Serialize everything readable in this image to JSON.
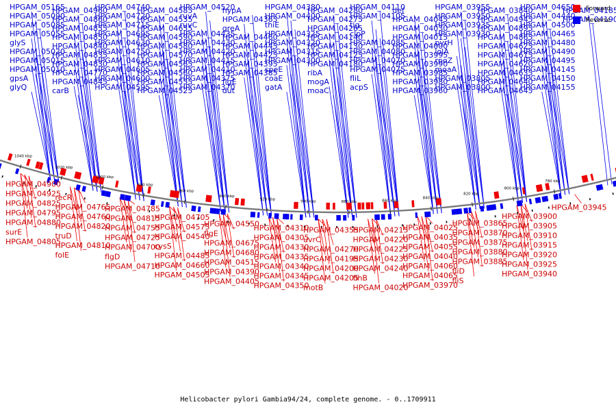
{
  "caption": "Helicobacter pylori Gambia94/24, complete genome. - 0..1709911",
  "legend": [
    {
      "label": "Forward",
      "color": "#ee0000"
    },
    {
      "label": "Reverse",
      "color": "#0000ee"
    }
  ],
  "colors": {
    "forward": "#ee0000",
    "reverse": "#0000ee",
    "backbone": "#7a7a7a"
  },
  "ticks": [
    "1040 kbp",
    "1020 kbp",
    "1000 kbp",
    "980 kbp",
    "960 kbp",
    "940 kbp",
    "920 kbp",
    "900 kbp",
    "880 kbp",
    "860 kbp",
    "840 kbp",
    "820 kbp",
    "800 kbp",
    "780 kbp"
  ],
  "reverse_labels": [
    "HPGAM_05165",
    "HPGAM_05090",
    "HPGAM_05085",
    "HPGAM_05055",
    "glyS",
    "HPGAM_05020",
    "HPGAM_05015",
    "HPGAM_05010",
    "gpsA",
    "glyQ",
    "HPGAM_04960",
    "HPGAM_04860",
    "HPGAM_04855",
    "HPGAM_04850",
    "HPGAM_04840",
    "HPGAM_04835",
    "HPGAM_04830",
    "HPGAM_04770",
    "HPGAM_04845",
    "carB",
    "HPGAM_04740",
    "HPGAM_04720",
    "HPGAM_04715",
    "HPGAM_04695",
    "HPGAM_04630",
    "HPGAM_04750",
    "HPGAM_04610",
    "HPGAM_04605",
    "HPGAM_04600",
    "HPGAM_04595",
    "HPGAM_04585",
    "HPGAM_04535",
    "HPGAM_04655",
    "HPGAM_04590",
    "HPGAM_04580",
    "HPGAM_04570",
    "HPGAM_04565",
    "HPGAM_04560",
    "HPGAM_04555",
    "HPGAM_04525",
    "HPGAM_04520",
    "ruvA",
    "ruvC",
    "HPGAM_04435",
    "HPGAM_04430",
    "HPGAM_04420",
    "HPGAM_04415",
    "HPGAM_04410",
    "HPGAM_04375",
    "HPGAM_04370",
    "hypA",
    "HPGAM_04365",
    "greA",
    "HPGAM_04460",
    "HPGAM_04445",
    "HPGAM_04425",
    "HPGAM_04395",
    "HPGAM_04385",
    "flgE",
    "dut",
    "HPGAM_04380",
    "HPGAM_04400",
    "thiE",
    "HPGAM_04325",
    "HPGAM_04320",
    "HPGAM_04315",
    "HPGAM_04300",
    "speE",
    "coaE",
    "gatA",
    "HPGAM_04280",
    "HPGAM_04275",
    "HPGAM_04265",
    "HPGAM_04140",
    "HPGAM_04130",
    "HPGAM_04125",
    "HPGAM_04180",
    "ribA",
    "mogA",
    "moaC",
    "HPGAM_04110",
    "HPGAM_04105",
    "tig",
    "clpP",
    "HPGAM_04085",
    "HPGAM_04080",
    "HPGAM_04070",
    "HPGAM_04075",
    "fliL",
    "acpS",
    "def",
    "HPGAM_04045",
    "HPGAM_04030",
    "HPGAM_04015",
    "HPGAM_04000",
    "HPGAM_03995",
    "HPGAM_03990",
    "HPGAM_03985",
    "HPGAM_03980",
    "HPGAM_03960",
    "HPGAM_03955",
    "HPGAM_03950",
    "HPGAM_03935",
    "HPGAM_03930",
    "pyrH",
    "lolA",
    "rpoZ",
    "moaA",
    "HPGAM_03805",
    "HPGAM_03800",
    "HPGAM_03840",
    "HPGAM_04945",
    "HPGAM_04895",
    "HPGAM_04865",
    "HPGAM_04625",
    "HPGAM_04615",
    "HPGAM_04620",
    "HPGAM_04635",
    "HPGAM_04640",
    "HPGAM_04645",
    "HPGAM_04650",
    "HPGAM_04440",
    "HPGAM_04500",
    "HPGAM_04465",
    "HPGAM_04480",
    "HPGAM_04490",
    "HPGAM_04495",
    "HPGAM_04145",
    "HPGAM_04150",
    "HPGAM_04155",
    "HPGAM_04185",
    "HPGAM_04190"
  ],
  "forward_labels": [
    "HPGAM_04900",
    "HPGAM_04925",
    "HPGAM_04825",
    "HPGAM_04795",
    "HPGAM_04880",
    "surE",
    "HPGAM_04805",
    "recR",
    "HPGAM_04765",
    "HPGAM_04760",
    "HPGAM_04820",
    "truD",
    "HPGAM_04810",
    "folE",
    "HPGAM_04785",
    "HPGAM_04815",
    "HPGAM_04755",
    "HPGAM_04725",
    "HPGAM_04700",
    "flgD",
    "HPGAM_04710",
    "HPGAM_04705",
    "HPGAM_04575",
    "HPGAM_04540",
    "cysS",
    "HPGAM_04485",
    "HPGAM_04660",
    "HPGAM_04505",
    "HPGAM_04550",
    "flgE",
    "HPGAM_04675",
    "HPGAM_04680",
    "HPGAM_04515",
    "HPGAM_04390",
    "HPGAM_04405",
    "HPGAM_04310",
    "HPGAM_04305",
    "HPGAM_04330",
    "HPGAM_04335",
    "HPGAM_04340",
    "HPGAM_04345",
    "HPGAM_04350",
    "HPGAM_04355",
    "uvrC",
    "HPGAM_04270",
    "HPGAM_04195",
    "HPGAM_04200",
    "HPGAM_04205",
    "motB",
    "HPGAM_04215",
    "HPGAM_04220",
    "HPGAM_04225",
    "HPGAM_04230",
    "HPGAM_04240",
    "flhB",
    "HPGAM_04020",
    "HPGAM_04025",
    "HPGAM_04035",
    "HPGAM_04055",
    "HPGAM_04040",
    "HPGAM_04060",
    "HPGAM_04065",
    "HPGAM_03970",
    "HPGAM_03865",
    "HPGAM_03870",
    "HPGAM_03875",
    "HPGAM_03880",
    "HPGAM_03885",
    "fliD",
    "fliS",
    "HPGAM_03900",
    "HPGAM_03905",
    "HPGAM_03910",
    "HPGAM_03915",
    "HPGAM_03920",
    "HPGAM_03925",
    "HPGAM_03940",
    "HPGAM_03945"
  ]
}
